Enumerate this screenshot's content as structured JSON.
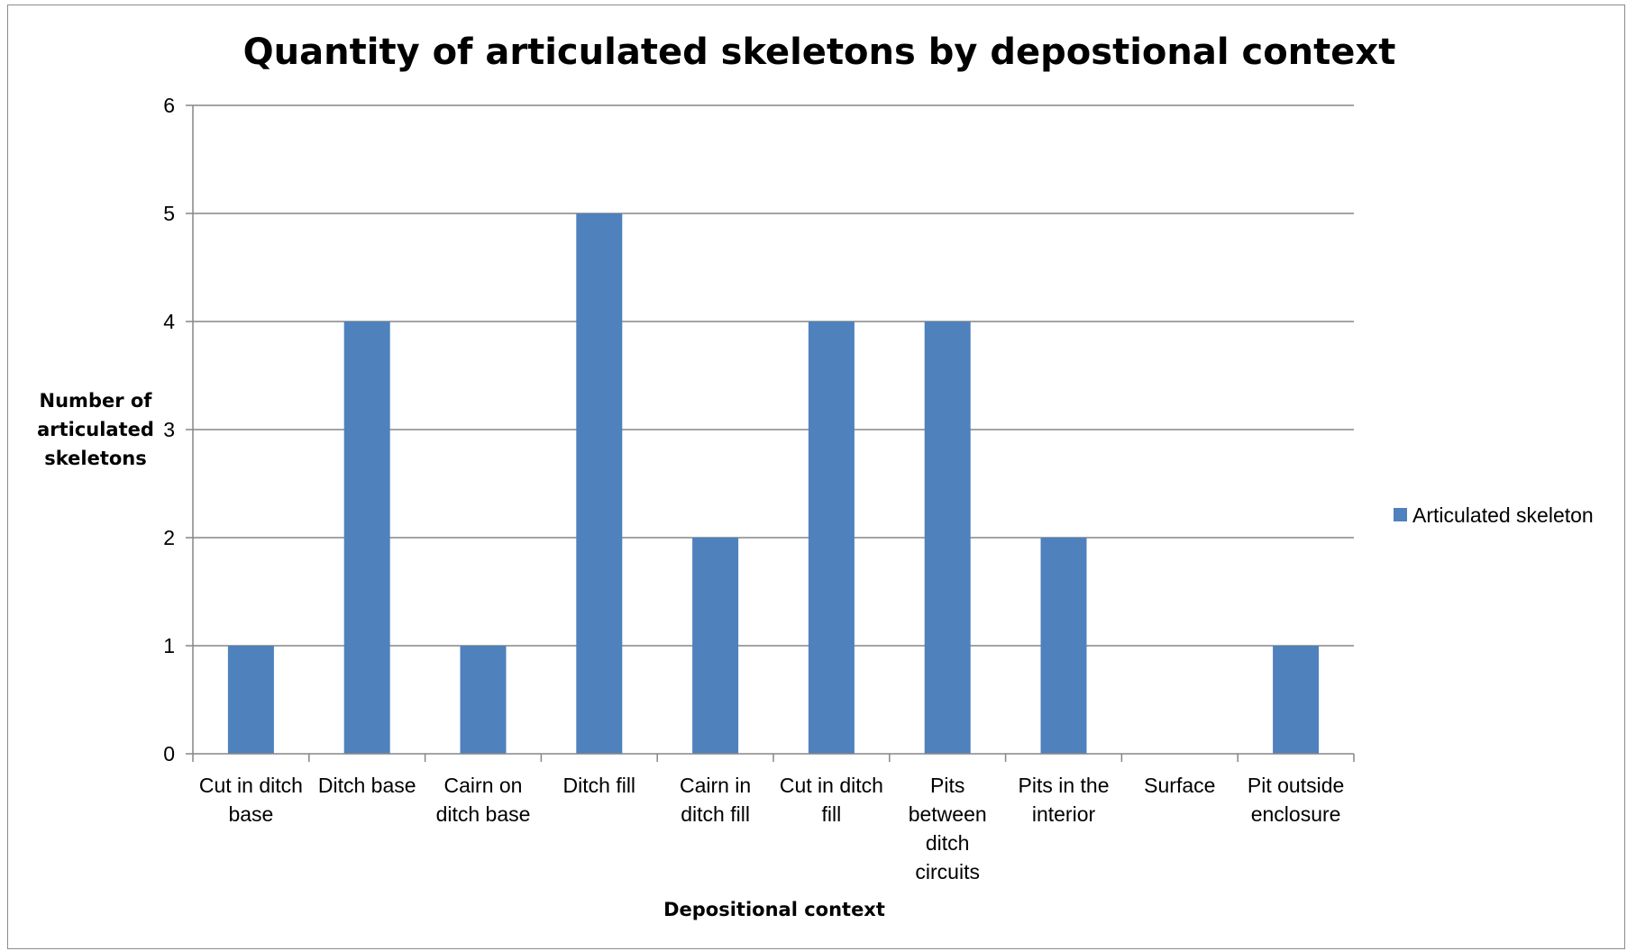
{
  "chart_data": {
    "type": "bar",
    "title": "Quantity of articulated skeletons by depostional context",
    "xlabel": "Depositional context",
    "ylabel": [
      "Number of",
      "articulated",
      "skeletons"
    ],
    "categories": [
      [
        "Cut in ditch",
        "base"
      ],
      [
        "Ditch base"
      ],
      [
        "Cairn on",
        "ditch base"
      ],
      [
        "Ditch fill"
      ],
      [
        "Cairn in",
        "ditch fill"
      ],
      [
        "Cut in ditch",
        "fill"
      ],
      [
        "Pits",
        "between",
        "ditch",
        "circuits"
      ],
      [
        "Pits in the",
        "interior"
      ],
      [
        "Surface"
      ],
      [
        "Pit outside",
        "enclosure"
      ]
    ],
    "series": [
      {
        "name": "Articulated skeleton",
        "values": [
          1,
          4,
          1,
          5,
          2,
          4,
          4,
          2,
          0,
          1
        ],
        "color": "#4f81bd"
      }
    ],
    "ylim": [
      0,
      6
    ],
    "yticks": [
      0,
      1,
      2,
      3,
      4,
      5,
      6
    ],
    "grid": true,
    "gridColor": "#868686",
    "legend": "right"
  }
}
